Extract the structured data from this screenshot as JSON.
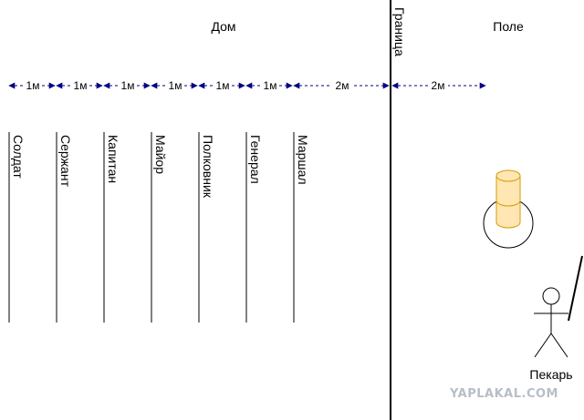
{
  "regions": {
    "house": "Дом",
    "field": "Поле",
    "border": "Граница"
  },
  "distances": {
    "one_meter": "1м",
    "two_meters": "2м"
  },
  "ranks": [
    "Солдат",
    "Сержант",
    "Капитан",
    "Майор",
    "Полковник",
    "Генерал",
    "Маршал"
  ],
  "baker": {
    "label": "Пекарь"
  },
  "colors": {
    "line": "#000000",
    "arrow": "#000080",
    "cylinder_fill": "#ffe6b3",
    "cylinder_stroke": "#d79b00"
  },
  "icons": {
    "baker": "stick-figure-icon",
    "arrowhead": "arrowhead-icon"
  },
  "watermark": "YAPLAKAL.COM"
}
